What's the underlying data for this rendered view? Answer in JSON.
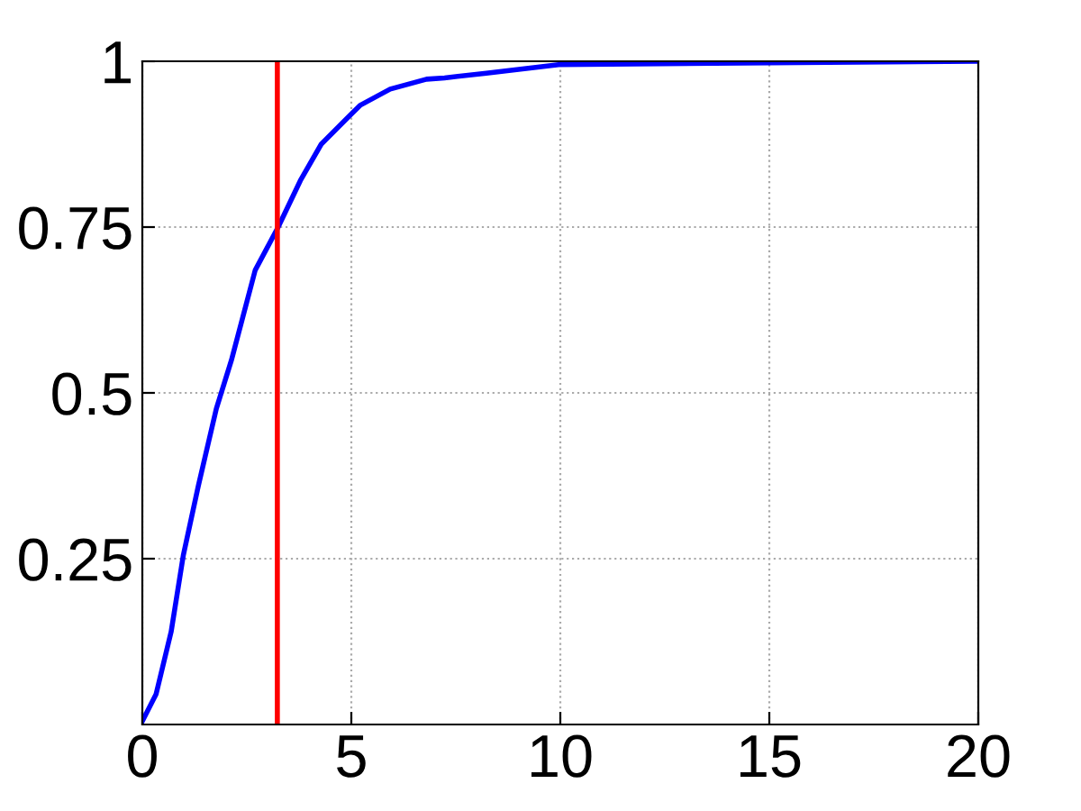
{
  "chart_data": {
    "type": "line",
    "x": [
      0,
      0.33,
      0.69,
      0.98,
      1.34,
      1.77,
      2.13,
      2.7,
      3.25,
      3.78,
      4.28,
      4.93,
      5.22,
      5.93,
      6.8,
      7.23,
      8.23,
      9.96,
      15.7,
      20
    ],
    "values": [
      0.005,
      0.046,
      0.14,
      0.255,
      0.36,
      0.476,
      0.549,
      0.685,
      0.75,
      0.82,
      0.875,
      0.916,
      0.934,
      0.958,
      0.973,
      0.975,
      0.982,
      0.995,
      0.998,
      1.0
    ],
    "color": "#0000ff",
    "xlim": [
      0,
      20
    ],
    "xticks": [
      0,
      5,
      10,
      15,
      20
    ],
    "ylim": [
      0,
      1
    ],
    "yticks": [
      0.25,
      0.5,
      0.75,
      1
    ],
    "grid": true,
    "line_style": "solid",
    "ref_lines": [
      {
        "axis": "x",
        "value": 3.23,
        "color": "#ff0000"
      }
    ]
  }
}
